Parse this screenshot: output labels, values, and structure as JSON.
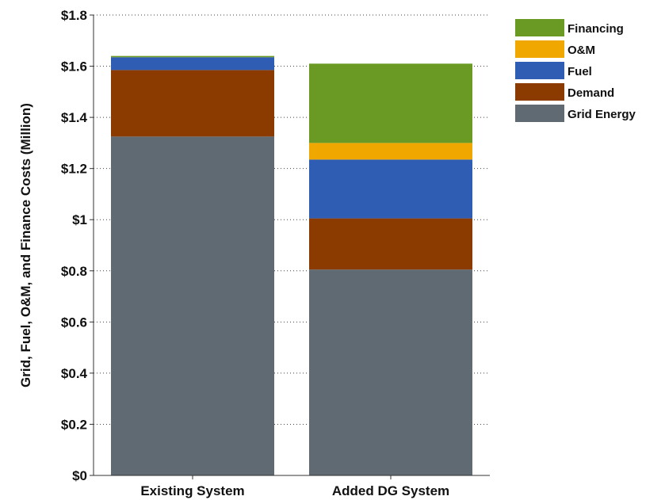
{
  "chart_data": {
    "type": "bar",
    "stacked": true,
    "title": "",
    "xlabel": "",
    "ylabel": "Grid, Fuel, O&M, and Finance Costs (Million)",
    "ylim": [
      0,
      1.8
    ],
    "yticks": [
      0,
      0.2,
      0.4,
      0.6,
      0.8,
      1.0,
      1.2,
      1.4,
      1.6,
      1.8
    ],
    "ytick_labels": [
      "$0",
      "$0.2",
      "$0.4",
      "$0.6",
      "$0.8",
      "$1",
      "$1.2",
      "$1.4",
      "$1.6",
      "$1.8"
    ],
    "grid": true,
    "legend_position": "top-right",
    "categories": [
      "Existing System",
      "Added DG System"
    ],
    "series": [
      {
        "name": "Grid Energy",
        "color": "#5f6a73",
        "values": [
          1.325,
          0.805
        ]
      },
      {
        "name": "Demand",
        "color": "#8b3a00",
        "values": [
          0.26,
          0.2
        ]
      },
      {
        "name": "Fuel",
        "color": "#2f5db3",
        "values": [
          0.05,
          0.23
        ]
      },
      {
        "name": "O&M",
        "color": "#f0a800",
        "values": [
          0.0,
          0.065
        ]
      },
      {
        "name": "Financing",
        "color": "#6a9a23",
        "values": [
          0.005,
          0.31
        ]
      }
    ]
  }
}
